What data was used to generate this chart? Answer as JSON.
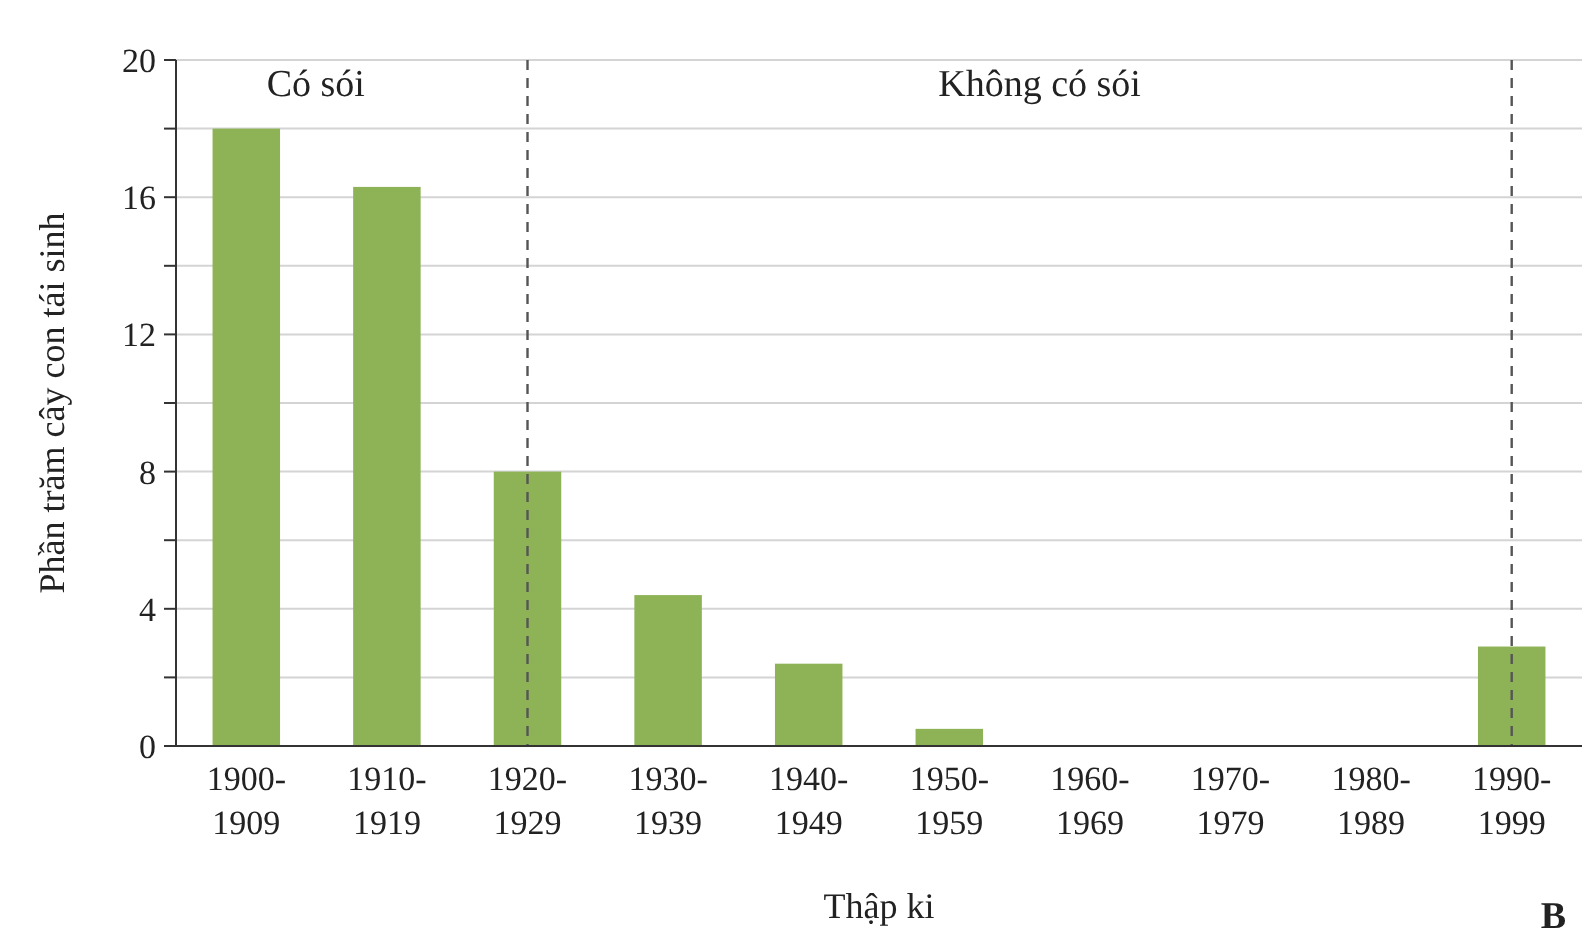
{
  "chart_data": {
    "type": "bar",
    "xlabel": "Thập ki",
    "ylabel": "Phần trăm cây con tái sinh",
    "categories": [
      "1900-1909",
      "1910-1919",
      "1920-1929",
      "1930-1939",
      "1940-1949",
      "1950-1959",
      "1960-1969",
      "1970-1979",
      "1980-1989",
      "1990-1999"
    ],
    "values": [
      18,
      16.3,
      8,
      4.4,
      2.4,
      0.5,
      0,
      0,
      0,
      2.9
    ],
    "color": "#8db356",
    "ylim": [
      0,
      20
    ],
    "yticks": [
      0,
      {
        "value": 2,
        "label": null
      },
      4,
      {
        "value": 6,
        "label": null
      },
      8,
      {
        "value": 10,
        "label": null
      },
      12,
      {
        "value": 14,
        "label": null
      },
      16,
      {
        "value": 18,
        "label": null
      },
      20
    ],
    "grid": "y",
    "ref_lines": [
      {
        "axis": "x",
        "value": "1920-1929",
        "color": "#555555",
        "line_style": "dashed"
      },
      {
        "axis": "x",
        "value": "1990-1999",
        "color": "#555555",
        "line_style": "dashed"
      }
    ],
    "annotations": [
      "Có sói",
      "Không có sói",
      "B"
    ]
  }
}
